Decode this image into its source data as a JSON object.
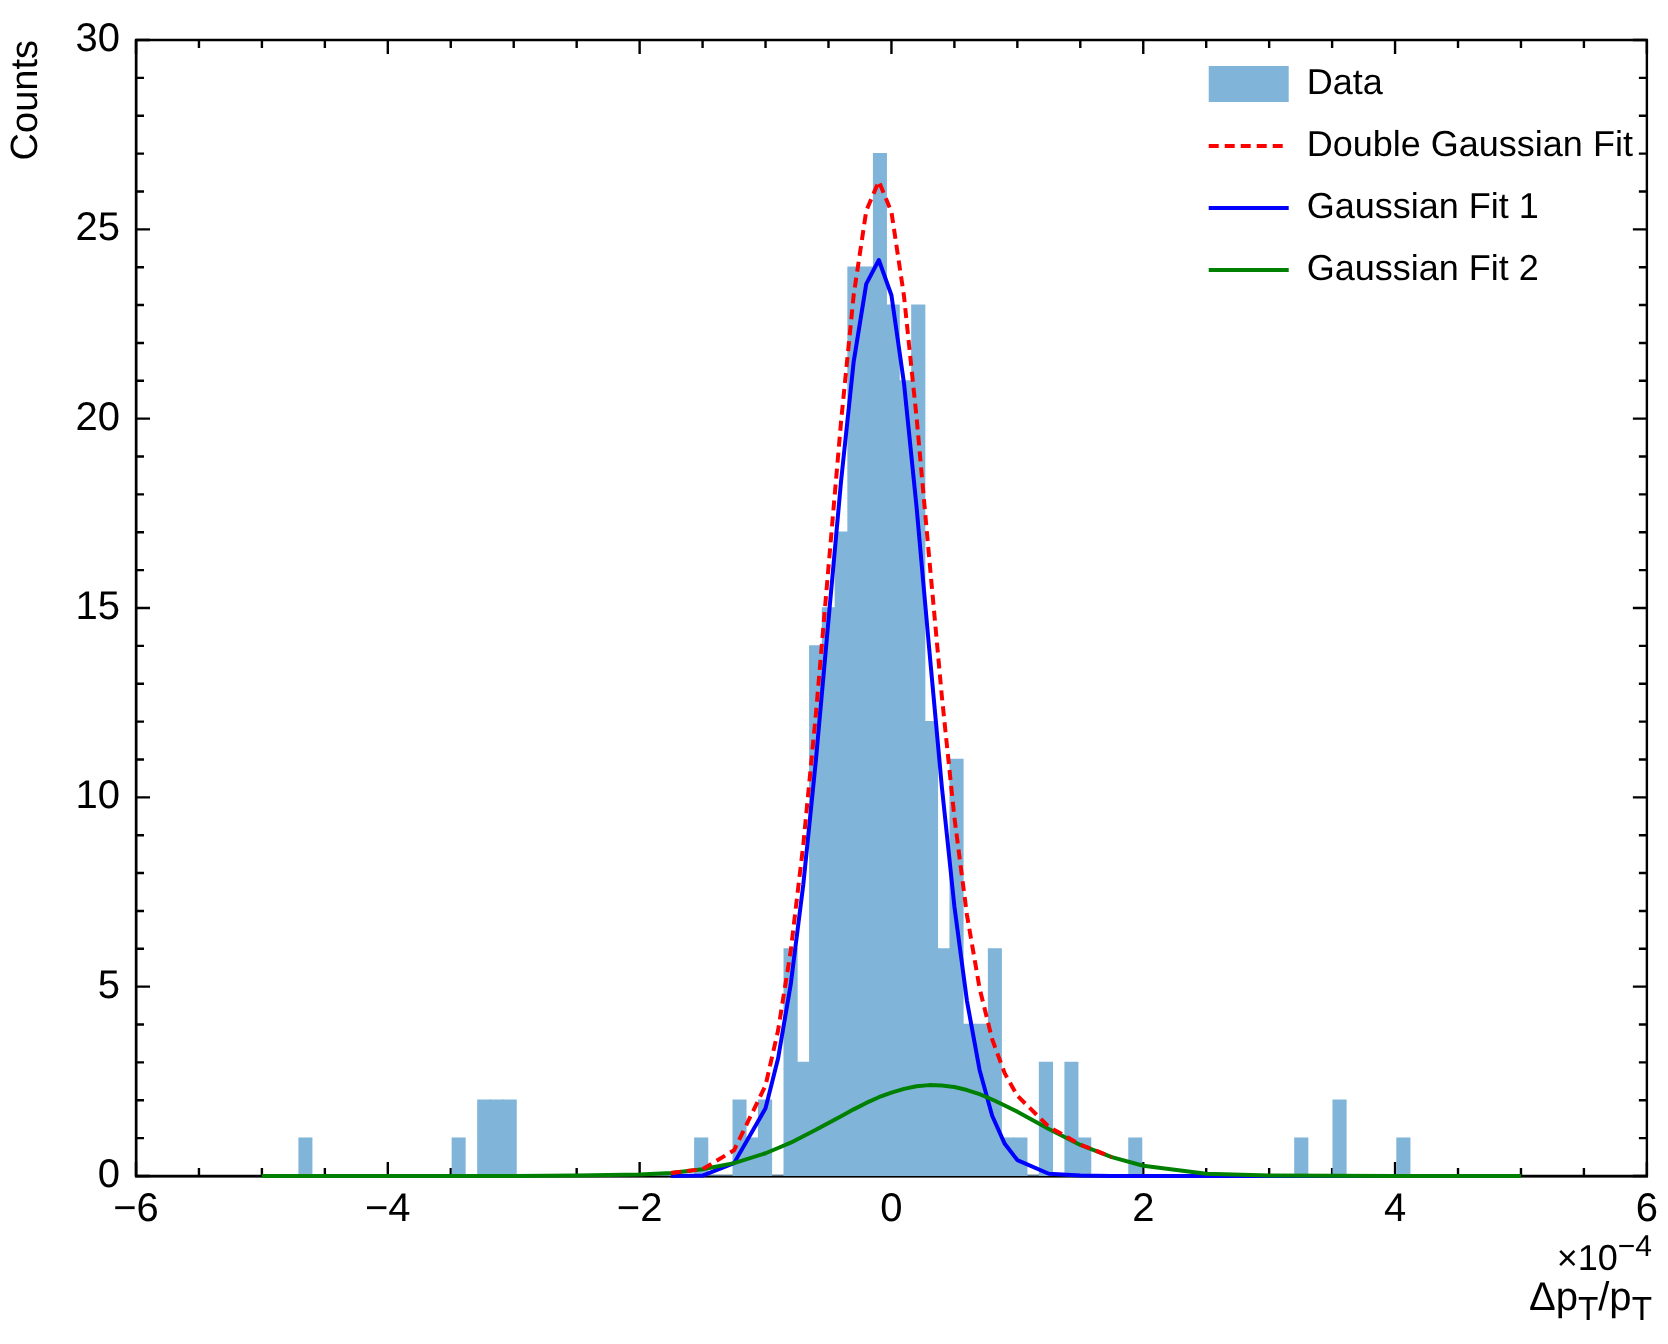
{
  "chart_data": {
    "type": "histogram",
    "xlabel": "Δp$_{T}$/p$_{T}$",
    "ylabel": "Counts",
    "annotations": [
      "×10$^{−4}$"
    ],
    "xlim": [
      -6,
      6
    ],
    "ylim": [
      0,
      30
    ],
    "xticks": [
      {
        "value": -6,
        "label": "−6"
      },
      {
        "value": -5.5,
        "label": null
      },
      {
        "value": -5,
        "label": null
      },
      {
        "value": -4.5,
        "label": null
      },
      {
        "value": -4,
        "label": "−4"
      },
      {
        "value": -3.5,
        "label": null
      },
      {
        "value": -3,
        "label": null
      },
      {
        "value": -2.5,
        "label": null
      },
      {
        "value": -2,
        "label": "−2"
      },
      {
        "value": -1.5,
        "label": null
      },
      {
        "value": -1,
        "label": null
      },
      {
        "value": -0.5,
        "label": null
      },
      0,
      {
        "value": 0.5,
        "label": null
      },
      {
        "value": 1,
        "label": null
      },
      {
        "value": 1.5,
        "label": null
      },
      2,
      {
        "value": 2.5,
        "label": null
      },
      {
        "value": 3,
        "label": null
      },
      {
        "value": 3.5,
        "label": null
      },
      4,
      {
        "value": 4.5,
        "label": null
      },
      {
        "value": 5,
        "label": null
      },
      {
        "value": 5.5,
        "label": null
      },
      6
    ],
    "yticks": [
      0,
      {
        "value": 1,
        "label": null
      },
      {
        "value": 2,
        "label": null
      },
      {
        "value": 3,
        "label": null
      },
      {
        "value": 4,
        "label": null
      },
      5,
      {
        "value": 6,
        "label": null
      },
      {
        "value": 7,
        "label": null
      },
      {
        "value": 8,
        "label": null
      },
      {
        "value": 9,
        "label": null
      },
      10,
      {
        "value": 11,
        "label": null
      },
      {
        "value": 12,
        "label": null
      },
      {
        "value": 13,
        "label": null
      },
      {
        "value": 14,
        "label": null
      },
      15,
      {
        "value": 16,
        "label": null
      },
      {
        "value": 17,
        "label": null
      },
      {
        "value": 18,
        "label": null
      },
      {
        "value": 19,
        "label": null
      },
      20,
      {
        "value": 21,
        "label": null
      },
      {
        "value": 22,
        "label": null
      },
      {
        "value": 23,
        "label": null
      },
      {
        "value": 24,
        "label": null
      },
      25,
      {
        "value": 26,
        "label": null
      },
      {
        "value": 27,
        "label": null
      },
      {
        "value": 28,
        "label": null
      },
      {
        "value": 29,
        "label": null
      },
      30
    ],
    "grid": false,
    "legend": "top right",
    "marker": "none",
    "series": [
      {
        "name": "Data",
        "type": "histogram",
        "color": "#80b5d9",
        "bins": [
          -4.705,
          -4.604,
          -3.488,
          -3.387,
          -3.285,
          -3.184,
          -3.083,
          -2.981,
          -1.562,
          -1.46,
          -1.257,
          -1.156,
          -1.055,
          -0.953,
          -0.852,
          -0.75,
          -0.649,
          -0.548,
          -0.446,
          -0.345,
          -0.244,
          -0.142,
          -0.041,
          0.061,
          0.162,
          0.264,
          0.365,
          0.466,
          0.568,
          0.669,
          0.771,
          0.872,
          0.973,
          1.075,
          1.176,
          1.278,
          1.379,
          1.48,
          1.582,
          1.886,
          1.987,
          3.204,
          3.306,
          3.508,
          3.61,
          4.015,
          4.117
        ],
        "values": [
          1,
          0,
          1,
          0,
          2,
          2,
          2,
          0,
          1,
          0,
          2,
          1,
          2,
          0,
          6,
          3,
          14,
          15,
          17,
          24,
          24,
          27,
          23,
          21,
          23,
          12,
          6,
          11,
          4,
          4,
          6,
          1,
          1,
          0,
          3,
          0,
          3,
          1,
          0,
          1,
          0,
          1,
          0,
          2,
          0,
          1
        ]
      },
      {
        "name": "Double Gaussian Fit",
        "type": "line",
        "color": "#ff0000",
        "line_style": "dashed",
        "x": [
          -1.75,
          -1.5,
          -1.25,
          -1,
          -0.9,
          -0.8,
          -0.7,
          -0.6,
          -0.5,
          -0.4,
          -0.3,
          -0.2,
          -0.1,
          0,
          0.1,
          0.2,
          0.3,
          0.4,
          0.5,
          0.6,
          0.7,
          0.8,
          0.9,
          1,
          1.25,
          1.5,
          1.75
        ],
        "values": [
          0.08,
          0.18,
          0.68,
          2.39,
          3.85,
          5.94,
          8.75,
          12.2,
          16.08,
          19.93,
          23.26,
          25.49,
          26.27,
          25.46,
          23.23,
          20.02,
          16.32,
          12.68,
          9.47,
          6.89,
          4.96,
          3.61,
          2.71,
          2.12,
          1.3,
          0.83,
          0.5
        ]
      },
      {
        "name": "Gaussian Fit 1",
        "type": "line",
        "color": "#0000ff",
        "line_style": "solid",
        "x": [
          -1.75,
          -1.5,
          -1.25,
          -1,
          -0.9,
          -0.8,
          -0.7,
          -0.6,
          -0.5,
          -0.4,
          -0.3,
          -0.2,
          -0.1,
          0,
          0.1,
          0.2,
          0.3,
          0.4,
          0.5,
          0.6,
          0.7,
          0.8,
          0.9,
          1,
          1.25,
          1.5,
          1.75,
          2,
          2.5,
          3,
          4,
          5
        ],
        "values": [
          0,
          0.01,
          0.34,
          1.79,
          3.11,
          5.06,
          7.7,
          10.98,
          14.68,
          18.35,
          21.5,
          23.56,
          24.19,
          23.26,
          20.93,
          17.65,
          13.92,
          10.29,
          7.12,
          4.62,
          2.8,
          1.59,
          0.85,
          0.42,
          0.06,
          0.01,
          0,
          0,
          0,
          0,
          0,
          0
        ]
      },
      {
        "name": "Gaussian Fit 2",
        "type": "line",
        "color": "#008000",
        "line_style": "solid",
        "x": [
          -5,
          -4,
          -3,
          -2.5,
          -2,
          -1.75,
          -1.5,
          -1.25,
          -1,
          -0.9,
          -0.8,
          -0.7,
          -0.6,
          -0.5,
          -0.4,
          -0.3,
          -0.2,
          -0.1,
          0,
          0.1,
          0.2,
          0.3,
          0.4,
          0.5,
          0.6,
          0.7,
          0.8,
          0.9,
          1,
          1.25,
          1.5,
          1.75,
          2,
          2.5,
          3,
          4,
          5
        ],
        "values": [
          0,
          0,
          0,
          0.01,
          0.04,
          0.08,
          0.18,
          0.34,
          0.6,
          0.74,
          0.88,
          1.05,
          1.22,
          1.4,
          1.58,
          1.76,
          1.93,
          2.08,
          2.2,
          2.3,
          2.37,
          2.4,
          2.39,
          2.35,
          2.27,
          2.16,
          2.02,
          1.86,
          1.7,
          1.24,
          0.82,
          0.5,
          0.27,
          0.06,
          0.01,
          0,
          0
        ]
      }
    ]
  }
}
